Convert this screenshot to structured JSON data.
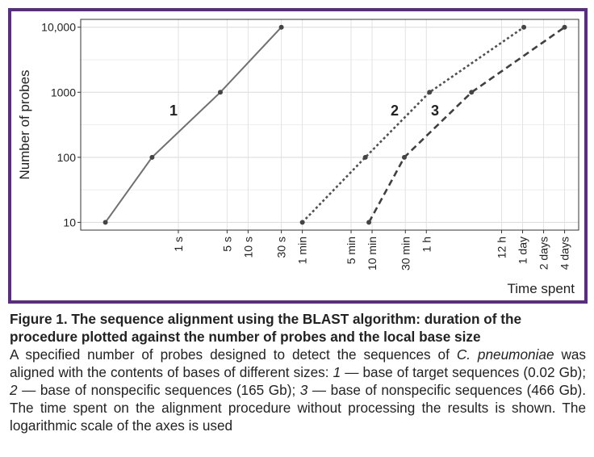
{
  "chart_data": {
    "type": "line",
    "xlabel": "Time spent",
    "ylabel": "Number of probes",
    "xscale": "log",
    "yscale": "log",
    "grid": true,
    "legend": "none",
    "x_unit": "seconds",
    "y_ticks": [
      {
        "value": 10,
        "label": "10"
      },
      {
        "value": 100,
        "label": "100"
      },
      {
        "value": 1000,
        "label": "1000"
      },
      {
        "value": 10000,
        "label": "10,000"
      }
    ],
    "x_ticks": [
      {
        "value": 1,
        "label": "1 s"
      },
      {
        "value": 5,
        "label": "5 s"
      },
      {
        "value": 10,
        "label": "10 s"
      },
      {
        "value": 30,
        "label": "30 s"
      },
      {
        "value": 60,
        "label": "1 min"
      },
      {
        "value": 300,
        "label": "5 min"
      },
      {
        "value": 600,
        "label": "10 min"
      },
      {
        "value": 1800,
        "label": "30 min"
      },
      {
        "value": 3600,
        "label": "1 h"
      },
      {
        "value": 43200,
        "label": "12 h"
      },
      {
        "value": 86400,
        "label": "1 day"
      },
      {
        "value": 172800,
        "label": "2 days"
      },
      {
        "value": 345600,
        "label": "4 days"
      }
    ],
    "series": [
      {
        "label": "1",
        "style": "solid",
        "color": "#707070",
        "x": [
          0.09,
          0.42,
          4.0,
          30.0
        ],
        "y": [
          10,
          100,
          1000,
          10000
        ]
      },
      {
        "label": "2",
        "style": "dotted",
        "color": "#505050",
        "x": [
          60,
          480,
          4000,
          90000
        ],
        "y": [
          10,
          100,
          1000,
          10000
        ]
      },
      {
        "label": "3",
        "style": "dashed",
        "color": "#404040",
        "x": [
          540,
          1740,
          16000,
          345600
        ],
        "y": [
          10,
          100,
          1000,
          10000
        ]
      }
    ]
  },
  "caption": {
    "title": "Figure 1. The sequence alignment using the BLAST algorithm: duration of the procedure plotted against the number of probes and the local base size",
    "body_parts": [
      {
        "text": "A specified number of probes designed to detect the sequences of "
      },
      {
        "text": "C. pneumoniae",
        "italic": true
      },
      {
        "text": " was aligned with the contents of bases of different sizes: "
      },
      {
        "text": "1",
        "italic": true
      },
      {
        "text": " — base of target sequences (0.02 Gb); "
      },
      {
        "text": "2",
        "italic": true
      },
      {
        "text": " — base of nonspecific sequences (165 Gb); "
      },
      {
        "text": "3",
        "italic": true
      },
      {
        "text": " — base of nonspecific sequences (466 Gb). The time spent on the alignment procedure without processing the results is shown. The logarithmic scale of the axes is used"
      }
    ]
  }
}
